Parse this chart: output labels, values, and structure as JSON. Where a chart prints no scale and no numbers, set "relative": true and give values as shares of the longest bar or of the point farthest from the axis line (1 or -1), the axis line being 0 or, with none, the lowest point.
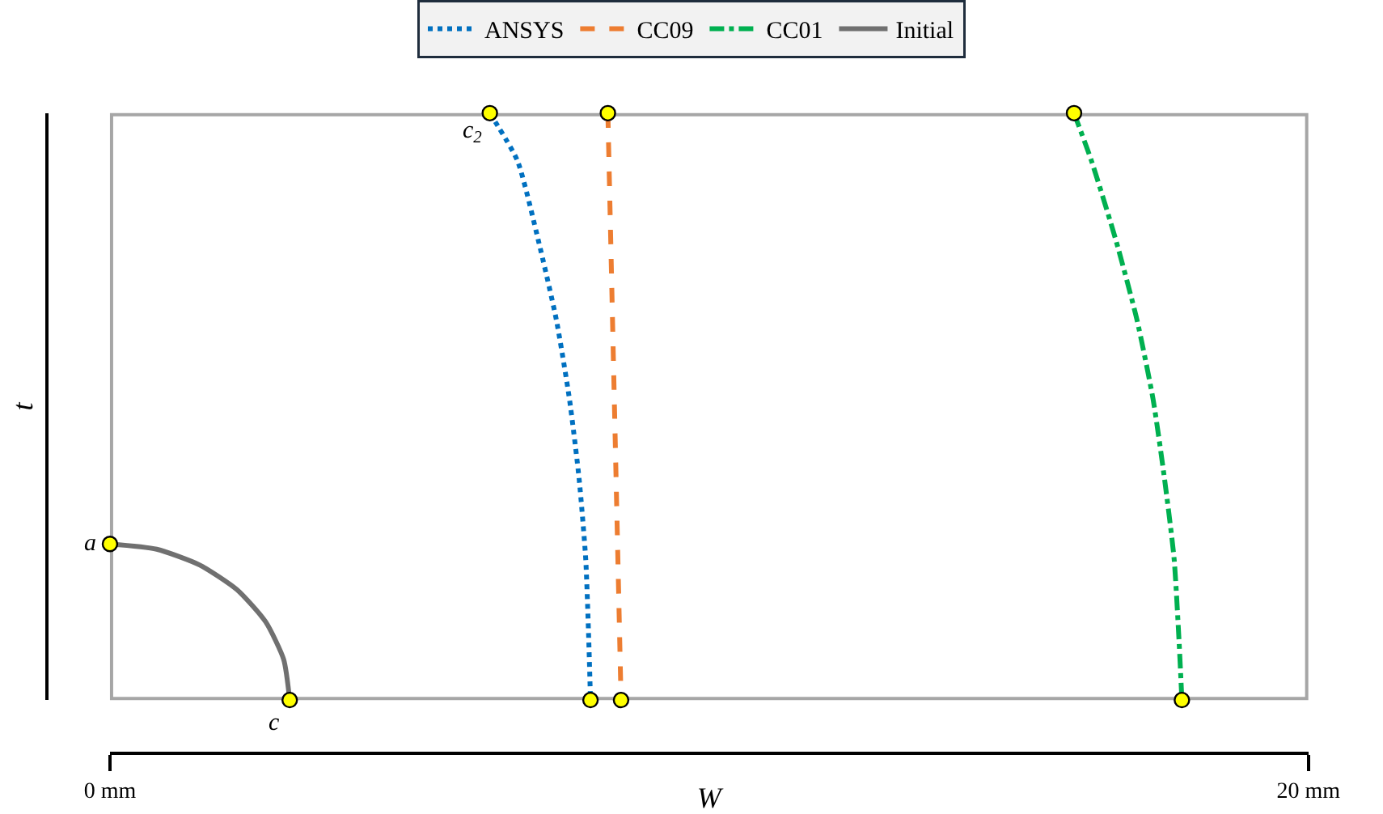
{
  "chart_data": {
    "type": "line",
    "relative": true,
    "xlabel": "W",
    "ylabel": "t",
    "xlim": [
      0,
      20
    ],
    "xticks": [
      {
        "value": 0,
        "label": "0 mm"
      },
      {
        "value": 20,
        "label": "20 mm"
      }
    ],
    "legend": "top",
    "grid": false,
    "tick_labels": "x",
    "series": [
      {
        "name": "ANSYS",
        "color": "#0070c0",
        "line_style": "dotted",
        "x": [
          6.34,
          6.8,
          7.15,
          7.45,
          7.67,
          7.83,
          7.94,
          7.99,
          8.02
        ],
        "values": [
          1,
          0.919,
          0.783,
          0.648,
          0.512,
          0.377,
          0.241,
          0.106,
          0
        ]
      },
      {
        "name": "CC09",
        "color": "#ed7d31",
        "line_style": "dashed",
        "x": [
          8.31,
          8.42,
          8.53
        ],
        "values": [
          1,
          0.5,
          0
        ]
      },
      {
        "name": "CC01",
        "color": "#00b050",
        "line_style": "dashdot",
        "x": [
          16.09,
          16.38,
          16.79,
          17.14,
          17.41,
          17.6,
          17.76,
          17.84,
          17.89
        ],
        "values": [
          1,
          0.919,
          0.783,
          0.648,
          0.512,
          0.377,
          0.241,
          0.106,
          0
        ]
      },
      {
        "name": "Initial",
        "color": "#707070",
        "line_style": "solid",
        "x": [
          0,
          0.78,
          1.5,
          2.12,
          2.6,
          2.9,
          3.0
        ],
        "values": [
          0.266,
          0.257,
          0.23,
          0.188,
          0.133,
          0.069,
          0
        ]
      },
      {
        "type": "scatter",
        "color": "#ffff00",
        "marker": "circle",
        "x": [
          0,
          3.0,
          6.34,
          8.02,
          8.31,
          8.53,
          16.09,
          17.89
        ],
        "values": [
          0.266,
          0,
          1,
          0,
          1,
          0,
          1,
          0
        ]
      }
    ],
    "annotations": [
      {
        "text": "a",
        "x": 0,
        "y": 0.266
      },
      {
        "text": "c",
        "x": 3.0,
        "y": 0
      },
      {
        "text": "c$_{2}$",
        "x": 6.34,
        "y": 1
      }
    ]
  }
}
